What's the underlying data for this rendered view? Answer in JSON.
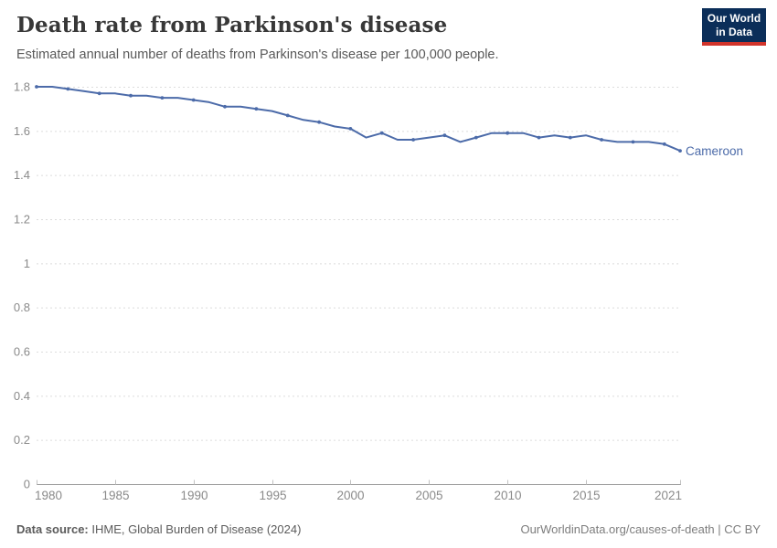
{
  "header": {
    "title": "Death rate from Parkinson's disease",
    "subtitle": "Estimated annual number of deaths from Parkinson's disease per 100,000 people.",
    "logo_line1": "Our World",
    "logo_line2": "in Data"
  },
  "chart_data": {
    "type": "line",
    "title": "Death rate from Parkinson's disease",
    "xlabel": "",
    "ylabel": "",
    "xlim": [
      1980,
      2021
    ],
    "ylim": [
      0,
      1.8
    ],
    "grid": "dashed-horizontal",
    "x_tick_years": [
      1980,
      1985,
      1990,
      1995,
      2000,
      2005,
      2010,
      2015,
      2021
    ],
    "x_tick_labels": [
      "1980",
      "1985",
      "1990",
      "1995",
      "2000",
      "2005",
      "2010",
      "2015",
      "2021"
    ],
    "y_tick_values": [
      0,
      0.2,
      0.4,
      0.6,
      0.8,
      1,
      1.2,
      1.4,
      1.6,
      1.8
    ],
    "y_tick_labels": [
      "0",
      "0.2",
      "0.4",
      "0.6",
      "0.8",
      "1",
      "1.2",
      "1.4",
      "1.6",
      "1.8"
    ],
    "series": [
      {
        "name": "Cameroon",
        "color": "#4c6ba9",
        "x": [
          1980,
          1981,
          1982,
          1983,
          1984,
          1985,
          1986,
          1987,
          1988,
          1989,
          1990,
          1991,
          1992,
          1993,
          1994,
          1995,
          1996,
          1997,
          1998,
          1999,
          2000,
          2001,
          2002,
          2003,
          2004,
          2005,
          2006,
          2007,
          2008,
          2009,
          2010,
          2011,
          2012,
          2013,
          2014,
          2015,
          2016,
          2017,
          2018,
          2019,
          2020,
          2021
        ],
        "values": [
          1.8,
          1.8,
          1.79,
          1.78,
          1.77,
          1.77,
          1.76,
          1.76,
          1.75,
          1.75,
          1.74,
          1.73,
          1.71,
          1.71,
          1.7,
          1.69,
          1.67,
          1.65,
          1.64,
          1.62,
          1.61,
          1.57,
          1.59,
          1.56,
          1.56,
          1.57,
          1.58,
          1.55,
          1.57,
          1.59,
          1.59,
          1.59,
          1.57,
          1.58,
          1.57,
          1.58,
          1.56,
          1.55,
          1.55,
          1.55,
          1.54,
          1.51
        ]
      }
    ],
    "legend_position": "end-of-line-label"
  },
  "footer": {
    "source_label": "Data source:",
    "source_text": " IHME, Global Burden of Disease (2024)",
    "link_text": "OurWorldinData.org/causes-of-death | CC BY"
  },
  "colors": {
    "line": "#4c6ba9",
    "grid": "#dcdcdc",
    "axis": "#a0a0a0",
    "tick": "#c2c2c2",
    "tick_label": "#8a8a8a",
    "logo_bg": "#0b2e59",
    "logo_red": "#d1342b"
  }
}
